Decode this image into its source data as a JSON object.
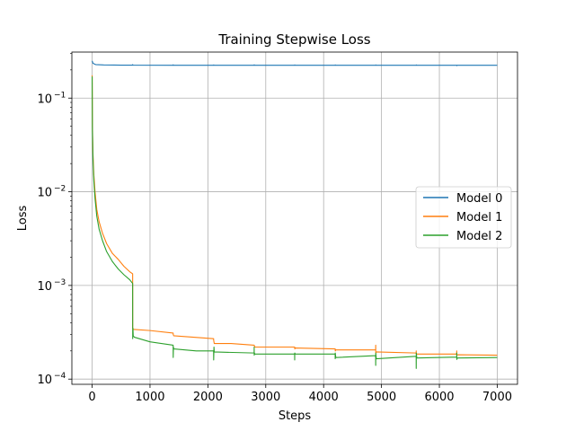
{
  "chart_data": {
    "type": "line",
    "title": "Training Stepwise Loss",
    "xlabel": "Steps",
    "ylabel": "Loss",
    "xlim": [
      -350,
      7350
    ],
    "ylim": [
      8.8e-05,
      0.31
    ],
    "yscale": "log",
    "grid": true,
    "legend_position": "center-right",
    "xticks": [
      0,
      1000,
      2000,
      3000,
      4000,
      5000,
      6000,
      7000
    ],
    "yticks": [
      {
        "value": 0.0001,
        "base": "10",
        "exp": "−4"
      },
      {
        "value": 0.001,
        "base": "10",
        "exp": "−3"
      },
      {
        "value": 0.01,
        "base": "10",
        "exp": "−2"
      },
      {
        "value": 0.1,
        "base": "10",
        "exp": "−1"
      }
    ],
    "series": [
      {
        "name": "Model 0",
        "color": "#1f77b4",
        "points": [
          [
            0,
            0.25
          ],
          [
            15,
            0.235
          ],
          [
            60,
            0.228
          ],
          [
            200,
            0.226
          ],
          [
            500,
            0.225
          ],
          [
            700,
            0.225
          ],
          [
            701,
            0.228
          ],
          [
            702,
            0.225
          ],
          [
            1400,
            0.224
          ],
          [
            1401,
            0.227
          ],
          [
            1402,
            0.224
          ],
          [
            2100,
            0.224
          ],
          [
            2101,
            0.226
          ],
          [
            2102,
            0.224
          ],
          [
            2800,
            0.224
          ],
          [
            2801,
            0.227
          ],
          [
            2802,
            0.224
          ],
          [
            3500,
            0.224
          ],
          [
            3501,
            0.226
          ],
          [
            3502,
            0.224
          ],
          [
            4200,
            0.224
          ],
          [
            4201,
            0.226
          ],
          [
            4202,
            0.224
          ],
          [
            4900,
            0.224
          ],
          [
            4901,
            0.226
          ],
          [
            4902,
            0.224
          ],
          [
            5600,
            0.224
          ],
          [
            5601,
            0.226
          ],
          [
            5602,
            0.224
          ],
          [
            6300,
            0.224
          ],
          [
            6301,
            0.222
          ],
          [
            6302,
            0.224
          ],
          [
            7000,
            0.224
          ]
        ]
      },
      {
        "name": "Model 1",
        "color": "#ff7f0e",
        "points": [
          [
            0,
            0.175
          ],
          [
            5,
            0.05
          ],
          [
            15,
            0.025
          ],
          [
            30,
            0.015
          ],
          [
            50,
            0.01
          ],
          [
            80,
            0.0065
          ],
          [
            120,
            0.0048
          ],
          [
            180,
            0.0036
          ],
          [
            250,
            0.0028
          ],
          [
            350,
            0.0022
          ],
          [
            450,
            0.0019
          ],
          [
            550,
            0.0016
          ],
          [
            650,
            0.0014
          ],
          [
            700,
            0.00133
          ],
          [
            701,
            0.00035
          ],
          [
            710,
            0.00034
          ],
          [
            1000,
            0.00033
          ],
          [
            1400,
            0.00031
          ],
          [
            1401,
            0.0003
          ],
          [
            1410,
            0.00029
          ],
          [
            2099,
            0.00027
          ],
          [
            2100,
            0.00026
          ],
          [
            2110,
            0.00024
          ],
          [
            2400,
            0.00024
          ],
          [
            2800,
            0.00023
          ],
          [
            2801,
            0.00023
          ],
          [
            2810,
            0.00022
          ],
          [
            3500,
            0.00022
          ],
          [
            3501,
            0.00021
          ],
          [
            3510,
            0.000215
          ],
          [
            4200,
            0.00021
          ],
          [
            4201,
            0.0002
          ],
          [
            4210,
            0.000205
          ],
          [
            4899,
            0.000205
          ],
          [
            4900,
            0.00023
          ],
          [
            4901,
            0.00019
          ],
          [
            4910,
            0.000195
          ],
          [
            5599,
            0.00019
          ],
          [
            5600,
            0.0002
          ],
          [
            5601,
            0.000185
          ],
          [
            5610,
            0.000185
          ],
          [
            6299,
            0.000185
          ],
          [
            6300,
            0.0002
          ],
          [
            6301,
            0.00018
          ],
          [
            6310,
            0.000182
          ],
          [
            7000,
            0.00018
          ]
        ]
      },
      {
        "name": "Model 2",
        "color": "#2ca02c",
        "points": [
          [
            0,
            0.17
          ],
          [
            5,
            0.045
          ],
          [
            15,
            0.022
          ],
          [
            30,
            0.013
          ],
          [
            50,
            0.0085
          ],
          [
            80,
            0.0055
          ],
          [
            120,
            0.004
          ],
          [
            180,
            0.003
          ],
          [
            250,
            0.0023
          ],
          [
            350,
            0.0018
          ],
          [
            450,
            0.0015
          ],
          [
            550,
            0.0013
          ],
          [
            650,
            0.00115
          ],
          [
            700,
            0.00105
          ],
          [
            701,
            0.00027
          ],
          [
            705,
            0.00035
          ],
          [
            710,
            0.00029
          ],
          [
            730,
            0.00028
          ],
          [
            1000,
            0.00025
          ],
          [
            1400,
            0.00023
          ],
          [
            1401,
            0.00017
          ],
          [
            1405,
            0.00022
          ],
          [
            1410,
            0.00021
          ],
          [
            1800,
            0.0002
          ],
          [
            2099,
            0.0002
          ],
          [
            2100,
            0.00016
          ],
          [
            2105,
            0.00022
          ],
          [
            2110,
            0.000195
          ],
          [
            2799,
            0.00019
          ],
          [
            2800,
            0.00022
          ],
          [
            2801,
            0.00018
          ],
          [
            2805,
            0.00019
          ],
          [
            2810,
            0.000185
          ],
          [
            3499,
            0.000185
          ],
          [
            3500,
            0.00016
          ],
          [
            3501,
            0.00019
          ],
          [
            3510,
            0.000185
          ],
          [
            4199,
            0.000185
          ],
          [
            4200,
            0.000165
          ],
          [
            4201,
            0.00019
          ],
          [
            4210,
            0.00017
          ],
          [
            4899,
            0.000178
          ],
          [
            4900,
            0.00014
          ],
          [
            4901,
            0.00019
          ],
          [
            4910,
            0.000165
          ],
          [
            5599,
            0.000175
          ],
          [
            5600,
            0.00013
          ],
          [
            5601,
            0.00019
          ],
          [
            5610,
            0.000168
          ],
          [
            6299,
            0.000172
          ],
          [
            6300,
            0.00019
          ],
          [
            6301,
            0.000162
          ],
          [
            6310,
            0.000168
          ],
          [
            7000,
            0.00017
          ]
        ]
      }
    ]
  }
}
